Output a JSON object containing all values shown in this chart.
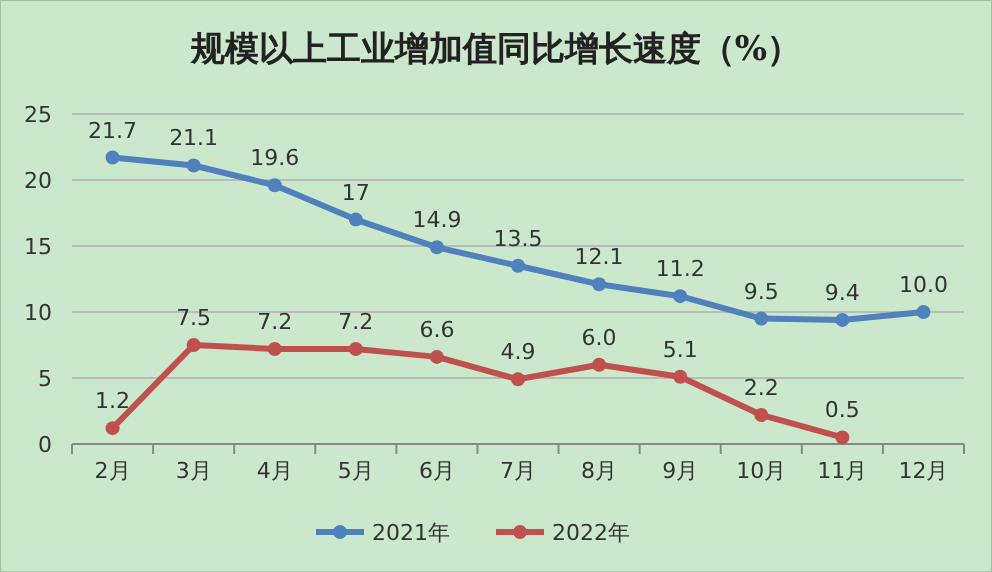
{
  "chart_data": {
    "type": "line",
    "title": "规模以上工业增加值同比增长速度（%）",
    "categories": [
      "2月",
      "3月",
      "4月",
      "5月",
      "6月",
      "7月",
      "8月",
      "9月",
      "10月",
      "11月",
      "12月"
    ],
    "series": [
      {
        "name": "2021年",
        "color": "#4f81bd",
        "values": [
          21.7,
          21.1,
          19.6,
          17,
          14.9,
          13.5,
          12.1,
          11.2,
          9.5,
          9.4,
          10.0
        ],
        "value_labels": [
          "21.7",
          "21.1",
          "19.6",
          "17",
          "14.9",
          "13.5",
          "12.1",
          "11.2",
          "9.5",
          "9.4",
          "10.0"
        ]
      },
      {
        "name": "2022年",
        "color": "#c0504d",
        "values": [
          1.2,
          7.5,
          7.2,
          7.2,
          6.6,
          4.9,
          6.0,
          5.1,
          2.2,
          0.5,
          null
        ],
        "value_labels": [
          "1.2",
          "7.5",
          "7.2",
          "7.2",
          "6.6",
          "4.9",
          "6.0",
          "5.1",
          "2.2",
          "0.5",
          null
        ]
      }
    ],
    "ylim": [
      0,
      25
    ],
    "yticks": [
      0,
      5,
      10,
      15,
      20,
      25
    ],
    "grid": "y",
    "legend": "bottom",
    "marker": "circle",
    "line_style": "solid"
  }
}
